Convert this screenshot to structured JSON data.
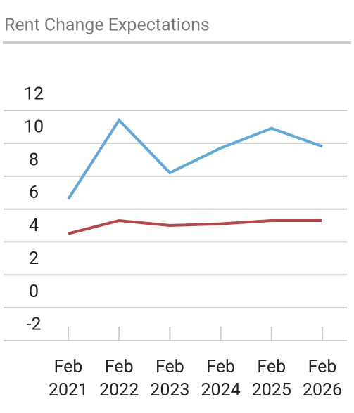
{
  "chart_data": {
    "type": "line",
    "title": "Rent Change Expectations",
    "categories": [
      "Feb 2021",
      "Feb 2022",
      "Feb 2023",
      "Feb 2024",
      "Feb 2025",
      "Feb 2026"
    ],
    "series": [
      {
        "color": "#64a8d8",
        "values": [
          6.6,
          11.4,
          8.2,
          9.7,
          10.9,
          9.8
        ]
      },
      {
        "color": "#b5474a",
        "values": [
          4.5,
          5.3,
          5.0,
          5.1,
          5.3,
          5.3
        ]
      }
    ],
    "ylim": [
      -2,
      12
    ],
    "yticks": [
      -2,
      0,
      2,
      4,
      6,
      8,
      10,
      12
    ],
    "grid": true
  }
}
